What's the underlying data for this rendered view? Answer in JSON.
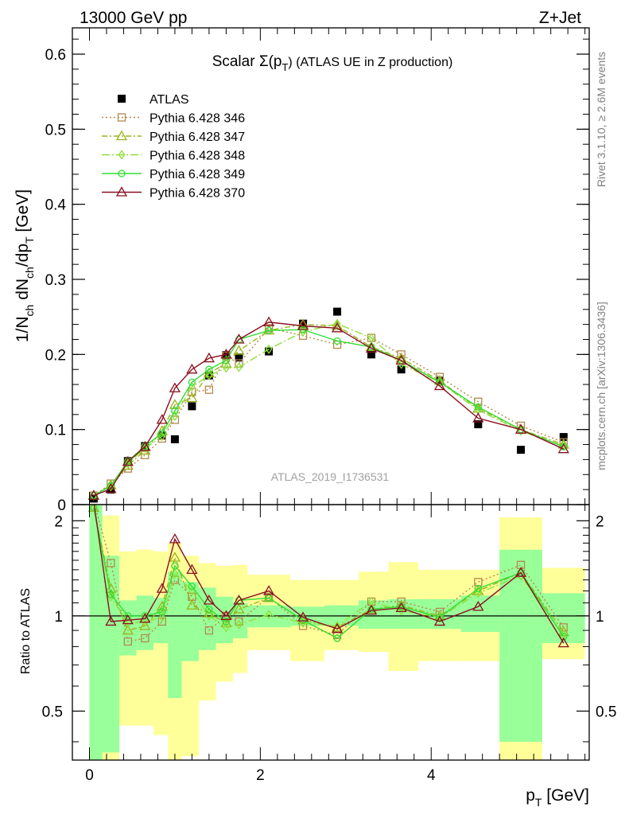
{
  "header": {
    "left": "13000 GeV pp",
    "right": "Z+Jet",
    "side_top": "Rivet 3.1.10, ≥ 2.6M events",
    "side_bottom": "mcplots.cern.ch [arXiv:1306.3436]",
    "watermark": "ATLAS_2019_I1736531"
  },
  "colors": {
    "data": "#000000",
    "p346": "#b3894d",
    "p347": "#99b31a",
    "p348": "#8ee03a",
    "p349": "#33dd33",
    "p370": "#8a1020",
    "band_inner": "#99ff99",
    "band_outer": "#ffff99"
  },
  "chart_data": [
    {
      "type": "line",
      "title": "Scalar Σ(p_T) (ATLAS UE in Z production)",
      "title_main": "Scalar Σ(p",
      "title_sub": "T",
      "title_rest": ") (ATLAS UE in Z production)",
      "ylabel": "1/N_ch dN_ch/dp_T [GeV]",
      "ylabel_parts": [
        "1/N",
        "ch",
        " dN",
        "ch",
        "/dp",
        "T",
        " [GeV]"
      ],
      "xlim": [
        -0.2,
        5.85
      ],
      "ylim": [
        0,
        0.635
      ],
      "yticks": [
        0,
        0.1,
        0.2,
        0.3,
        0.4,
        0.5,
        0.6
      ],
      "ytick_labels": [
        "0",
        "0.1",
        "0.2",
        "0.3",
        "0.4",
        "0.5",
        "0.6"
      ],
      "legend_position": "top-left",
      "x": [
        0.05,
        0.25,
        0.45,
        0.65,
        0.85,
        1.0,
        1.2,
        1.4,
        1.6,
        1.75,
        2.1,
        2.5,
        2.9,
        3.3,
        3.65,
        4.1,
        4.55,
        5.05,
        5.55
      ],
      "series": [
        {
          "name": "ATLAS",
          "key": "data",
          "marker": "square-filled",
          "dash": "",
          "values": [
            0.008,
            0.02,
            0.058,
            0.078,
            0.092,
            0.087,
            0.131,
            0.172,
            0.199,
            0.196,
            0.204,
            0.241,
            0.257,
            0.2,
            0.18,
            0.165,
            0.107,
            0.073,
            0.09
          ]
        },
        {
          "name": "Pythia 6.428 346",
          "key": "p346",
          "marker": "square-open",
          "dash": "2,3",
          "values": [
            0.012,
            0.028,
            0.048,
            0.066,
            0.088,
            0.113,
            0.15,
            0.153,
            0.198,
            0.188,
            0.235,
            0.225,
            0.213,
            0.222,
            0.2,
            0.17,
            0.137,
            0.105,
            0.083
          ]
        },
        {
          "name": "Pythia 6.428 347",
          "key": "p347",
          "marker": "triangle-open",
          "dash": "7,3,2,3",
          "values": [
            0.012,
            0.026,
            0.052,
            0.072,
            0.098,
            0.133,
            0.142,
            0.175,
            0.188,
            0.205,
            0.232,
            0.24,
            0.238,
            0.21,
            0.195,
            0.165,
            0.128,
            0.1,
            0.08
          ]
        },
        {
          "name": "Pythia 6.428 348",
          "key": "p348",
          "marker": "diamond-open",
          "dash": "10,3,2,3",
          "values": [
            0.012,
            0.024,
            0.055,
            0.075,
            0.091,
            0.118,
            0.157,
            0.172,
            0.182,
            0.183,
            0.207,
            0.23,
            0.241,
            0.222,
            0.187,
            0.163,
            0.126,
            0.098,
            0.078
          ]
        },
        {
          "name": "Pythia 6.428 349",
          "key": "p349",
          "marker": "circle-open",
          "dash": "",
          "values": [
            0.012,
            0.025,
            0.058,
            0.078,
            0.095,
            0.125,
            0.163,
            0.18,
            0.192,
            0.22,
            0.232,
            0.233,
            0.218,
            0.21,
            0.192,
            0.163,
            0.13,
            0.1,
            0.077
          ]
        },
        {
          "name": "Pythia 6.428 370",
          "key": "p370",
          "marker": "triangle-open",
          "dash": "",
          "values": [
            0.012,
            0.021,
            0.057,
            0.077,
            0.113,
            0.155,
            0.18,
            0.195,
            0.2,
            0.22,
            0.243,
            0.238,
            0.235,
            0.208,
            0.192,
            0.158,
            0.115,
            0.1,
            0.074
          ]
        }
      ]
    },
    {
      "type": "line",
      "ylabel": "Ratio to ATLAS",
      "xlabel": "p_T [GeV]",
      "xlabel_main": "p",
      "xlabel_sub": "T",
      "xlabel_rest": " [GeV]",
      "xlim": [
        -0.2,
        5.85
      ],
      "ylim": [
        0.35,
        2.25
      ],
      "scale": "log",
      "xticks": [
        0,
        2,
        4
      ],
      "xtick_labels": [
        "0",
        "2",
        "4"
      ],
      "yticks": [
        0.5,
        1,
        2
      ],
      "ytick_labels": [
        "0.5",
        "1",
        "2"
      ],
      "bands": {
        "edges": [
          0.0,
          0.15,
          0.35,
          0.55,
          0.75,
          0.92,
          1.08,
          1.28,
          1.48,
          1.68,
          1.85,
          2.35,
          2.75,
          3.15,
          3.5,
          3.85,
          4.35,
          4.8,
          5.3,
          5.8
        ],
        "inner_lo": [
          0.35,
          0.37,
          0.75,
          0.78,
          0.82,
          0.55,
          0.72,
          0.78,
          0.82,
          0.85,
          0.92,
          0.93,
          0.93,
          0.91,
          0.91,
          0.91,
          0.89,
          0.4,
          0.82
        ],
        "inner_hi": [
          2.25,
          1.55,
          1.12,
          1.16,
          1.14,
          1.38,
          1.28,
          1.23,
          1.15,
          1.1,
          1.08,
          1.07,
          1.08,
          1.12,
          1.13,
          1.13,
          1.16,
          1.62,
          1.18
        ],
        "outer_lo": [
          0.35,
          0.35,
          0.45,
          0.45,
          0.42,
          0.35,
          0.36,
          0.54,
          0.62,
          0.66,
          0.78,
          0.72,
          0.78,
          0.77,
          0.67,
          0.72,
          0.72,
          0.35,
          0.73
        ],
        "outer_hi": [
          2.25,
          2.08,
          1.6,
          1.62,
          1.6,
          1.7,
          1.55,
          1.47,
          1.44,
          1.45,
          1.35,
          1.3,
          1.3,
          1.38,
          1.48,
          1.4,
          1.4,
          2.05,
          1.42
        ]
      },
      "series": [
        {
          "name": "Pythia 6.428 346",
          "key": "p346",
          "marker": "square-open",
          "dash": "2,3",
          "values": [
            2.3,
            1.47,
            0.83,
            0.85,
            0.96,
            1.3,
            1.15,
            0.9,
            1.0,
            0.96,
            1.15,
            0.93,
            0.87,
            1.11,
            1.11,
            1.03,
            1.28,
            1.45,
            0.92
          ]
        },
        {
          "name": "Pythia 6.428 347",
          "key": "p347",
          "marker": "triangle-open",
          "dash": "7,3,2,3",
          "values": [
            2.2,
            1.22,
            0.9,
            0.93,
            1.07,
            1.53,
            1.08,
            1.02,
            0.95,
            1.05,
            1.14,
            0.97,
            0.92,
            1.05,
            1.08,
            1.0,
            1.2,
            1.37,
            0.89
          ]
        },
        {
          "name": "Pythia 6.428 348",
          "key": "p348",
          "marker": "diamond-open",
          "dash": "10,3,2,3",
          "values": [
            2.2,
            1.15,
            0.95,
            0.96,
            0.99,
            1.36,
            1.2,
            1.0,
            0.92,
            0.94,
            1.01,
            0.95,
            0.93,
            1.11,
            1.04,
            0.99,
            1.18,
            1.34,
            0.87
          ]
        },
        {
          "name": "Pythia 6.428 349",
          "key": "p349",
          "marker": "circle-open",
          "dash": "",
          "values": [
            2.2,
            1.17,
            1.0,
            1.0,
            1.03,
            1.44,
            1.24,
            1.05,
            0.96,
            1.12,
            1.14,
            0.97,
            0.85,
            1.05,
            1.07,
            0.99,
            1.22,
            1.37,
            0.86
          ]
        },
        {
          "name": "Pythia 6.428 370",
          "key": "p370",
          "marker": "triangle-open",
          "dash": "",
          "values": [
            2.3,
            0.96,
            0.97,
            0.98,
            1.22,
            1.75,
            1.4,
            1.12,
            1.0,
            1.12,
            1.2,
            0.99,
            0.91,
            1.04,
            1.06,
            0.96,
            1.07,
            1.37,
            0.82
          ]
        }
      ]
    }
  ]
}
